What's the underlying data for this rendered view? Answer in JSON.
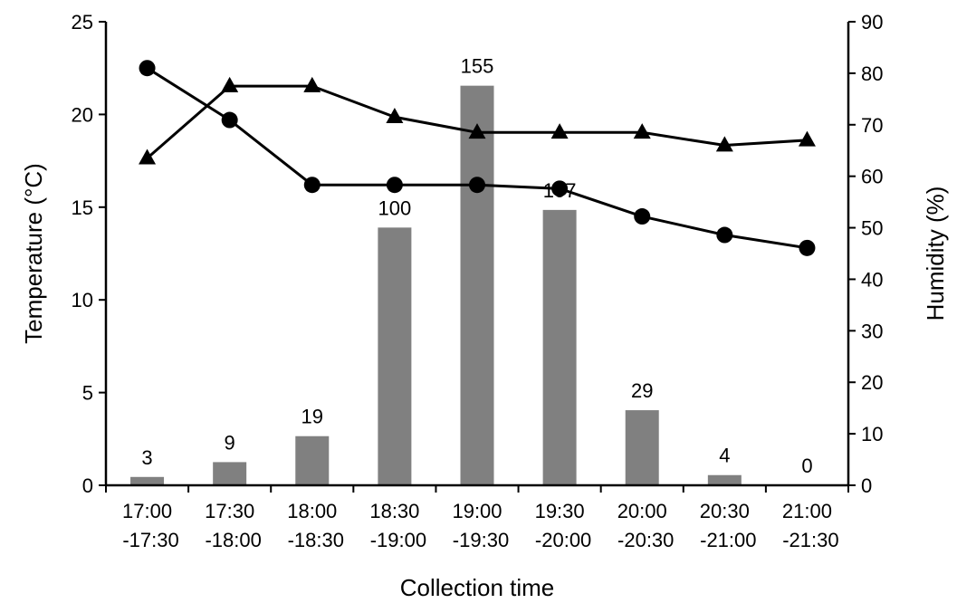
{
  "chart_data": {
    "type": "bar",
    "title": "",
    "xlabel": "Collection time",
    "ylabel": "Temperature (°C)",
    "ylabel_right": "Humidity (%)",
    "ylim": [
      0,
      25
    ],
    "ylim_right": [
      0,
      90
    ],
    "yticks": [
      "0",
      "5",
      "10",
      "15",
      "20",
      "25"
    ],
    "yticks_right": [
      "0",
      "10",
      "20",
      "30",
      "40",
      "50",
      "60",
      "70",
      "80",
      "90"
    ],
    "categories": [
      [
        "17:00",
        "-17:30"
      ],
      [
        "17:30",
        "-18:00"
      ],
      [
        "18:00",
        "-18:30"
      ],
      [
        "18:30",
        "-19:00"
      ],
      [
        "19:00",
        "-19:30"
      ],
      [
        "19:30",
        "-20:00"
      ],
      [
        "20:00",
        "-20:30"
      ],
      [
        "20:30",
        "-21:00"
      ],
      [
        "21:00",
        "-21:30"
      ]
    ],
    "bar_counts": [
      3,
      9,
      19,
      100,
      155,
      107,
      29,
      4,
      0
    ],
    "bar_labels": [
      "3",
      "9",
      "19",
      "100",
      "155",
      "107",
      "29",
      "4",
      "0"
    ],
    "bar_values_left_axis": [
      0.45,
      1.25,
      2.65,
      13.9,
      21.55,
      14.85,
      4.05,
      0.55,
      0
    ],
    "series": [
      {
        "marker": "circle",
        "axis": "left",
        "values": [
          22.5,
          19.7,
          16.2,
          16.2,
          16.2,
          16.0,
          14.5,
          13.5,
          12.8
        ]
      },
      {
        "marker": "triangle",
        "axis": "right",
        "values": [
          63.5,
          77.5,
          77.5,
          71.5,
          68.5,
          68.5,
          68.5,
          66,
          67
        ]
      }
    ],
    "colors": {
      "bar": "#808080",
      "line": "#000000"
    },
    "grid": false,
    "legend": "none"
  }
}
